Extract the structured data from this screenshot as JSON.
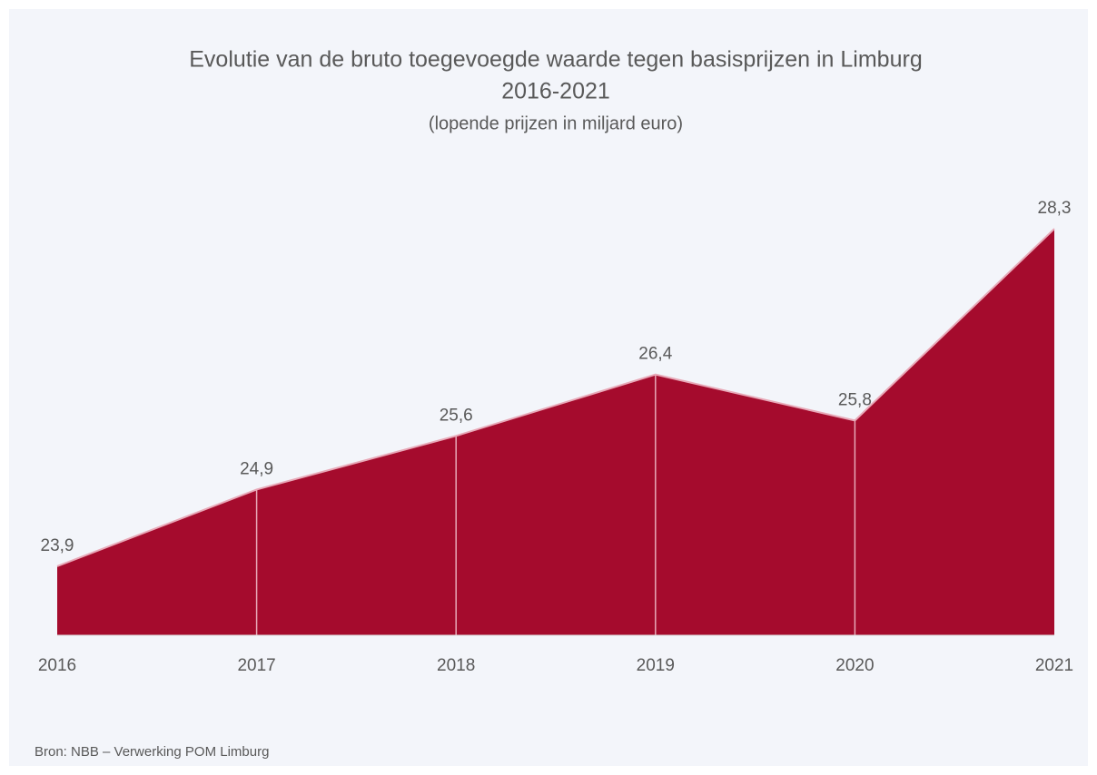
{
  "chart_data": {
    "type": "area",
    "title": [
      "Evolutie van de bruto toegevoegde waarde tegen basisprijzen in Limburg",
      "2016-2021"
    ],
    "subtitle": "(lopende prijzen in miljard euro)",
    "source": "Bron: NBB – Verwerking POM Limburg",
    "categories": [
      "2016",
      "2017",
      "2018",
      "2019",
      "2020",
      "2021"
    ],
    "values": [
      23.9,
      24.9,
      25.6,
      26.4,
      25.8,
      28.3
    ],
    "value_labels": [
      "23,9",
      "24,9",
      "25,6",
      "26,4",
      "25,8",
      "28,3"
    ],
    "color": "#a50b2d",
    "line_color": "#e8a9b8",
    "ylim": [
      23,
      29
    ]
  }
}
